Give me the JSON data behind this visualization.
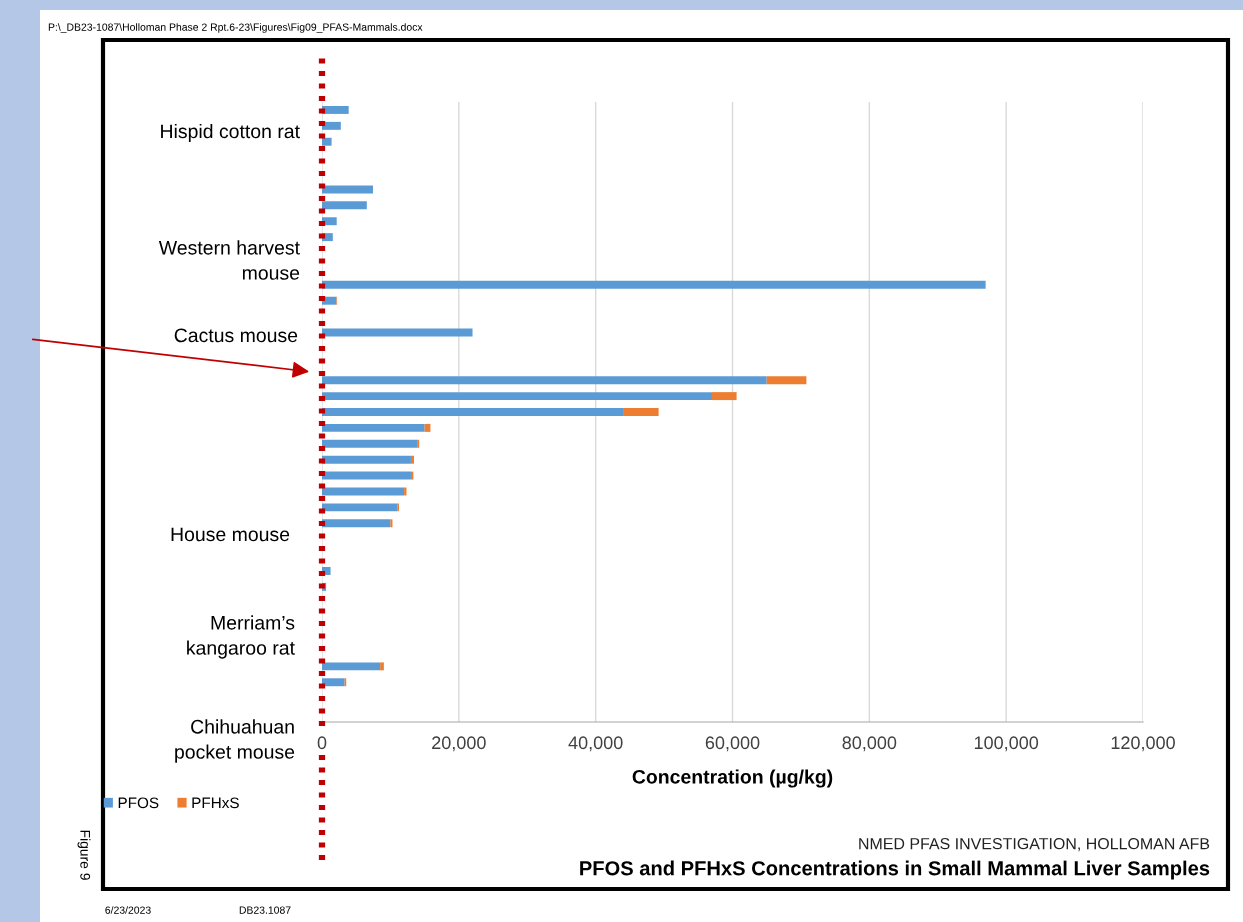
{
  "chart_data": {
    "type": "bar",
    "orientation": "horizontal",
    "stacked": true,
    "title": "PFOS and PFHxS Concentrations in Small Mammal Liver Samples",
    "subtitle": "NMED PFAS INVESTIGATION, HOLLOMAN AFB",
    "xlabel": "Concentration (µg/kg)",
    "categories": [
      null,
      null,
      null,
      null,
      null,
      null,
      null,
      null,
      null,
      null,
      null,
      null,
      null,
      null,
      null,
      null,
      null,
      null,
      null,
      null,
      null,
      null,
      null,
      null,
      null,
      null,
      null,
      null,
      null,
      null,
      null,
      null,
      null,
      null,
      null,
      null,
      null,
      null,
      null
    ],
    "series": [
      {
        "name": "PFOS",
        "color": "#5b9bd5",
        "values": [
          3900,
          2750,
          1400,
          null,
          null,
          7450,
          6550,
          2150,
          1580,
          null,
          null,
          97000,
          2100,
          null,
          22000,
          null,
          null,
          65000,
          57000,
          44000,
          15000,
          14000,
          13000,
          13000,
          12000,
          11000,
          10000,
          null,
          null,
          1250,
          600,
          null,
          null,
          null,
          null,
          8500,
          3300,
          null,
          null
        ]
      },
      {
        "name": "PFHxS",
        "color": "#ed7d31",
        "values": [
          null,
          null,
          null,
          null,
          null,
          null,
          null,
          null,
          null,
          null,
          null,
          null,
          100,
          null,
          null,
          null,
          null,
          5800,
          3600,
          5200,
          850,
          200,
          450,
          350,
          350,
          250,
          300,
          null,
          null,
          null,
          null,
          null,
          null,
          null,
          null,
          540,
          240,
          null,
          null
        ]
      }
    ],
    "xlim": [
      0,
      120000
    ],
    "xticks": [
      {
        "value": 0,
        "label": "0"
      },
      {
        "value": 20000,
        "label": "20,000"
      },
      {
        "value": 40000,
        "label": "40,000"
      },
      {
        "value": 60000,
        "label": "60,000"
      },
      {
        "value": 80000,
        "label": "80,000"
      },
      {
        "value": 100000,
        "label": "100,000"
      },
      {
        "value": 120000,
        "label": "120,000"
      }
    ],
    "grid": "x",
    "legend": "bottom left",
    "ref_lines": [
      {
        "axis": "x",
        "value": 0,
        "color": "#c00000",
        "line_style": "dotted"
      }
    ],
    "annotations": [
      "P:\\_DB23-1087\\Holloman Phase 2 Rpt.6-23\\Figures\\Fig09_PFAS-Mammals.docx",
      "Figure 9",
      "6/23/2023",
      "DB23.1087",
      "Hispid cotton rat",
      "Western harvest\nmouse",
      "Cactus mouse",
      "House mouse",
      "Merriam’s\nkangaroo rat",
      "Chihuahuan\npocket mouse"
    ]
  }
}
